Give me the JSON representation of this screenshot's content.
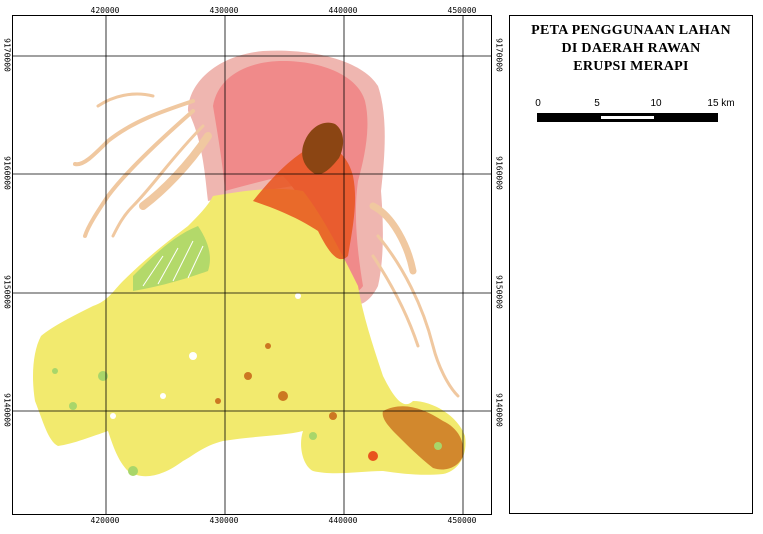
{
  "map": {
    "x_ticks": [
      "420000",
      "430000",
      "440000",
      "450000"
    ],
    "y_ticks": [
      "9170000",
      "9160000",
      "9150000",
      "9140000"
    ],
    "colors": {
      "hazard_high": "#f08a8a",
      "hazard_outer": "#efb6b0",
      "hazard_core": "#f3a0a0",
      "lahar_channel": "#f0c8a0",
      "summit": "#8b4513",
      "settlement": "#f2ea6e",
      "forest": "#e8541e",
      "plantation": "#a8d66a",
      "dryland": "#cc7722",
      "grid": "#000000"
    }
  },
  "legend": {
    "title_lines": [
      "PETA PENGGUNAAN LAHAN",
      "DI DAERAH RAWAN",
      "ERUPSI MERAPI"
    ],
    "scale": {
      "labels": [
        "0",
        "5",
        "10",
        "15 km"
      ]
    }
  }
}
